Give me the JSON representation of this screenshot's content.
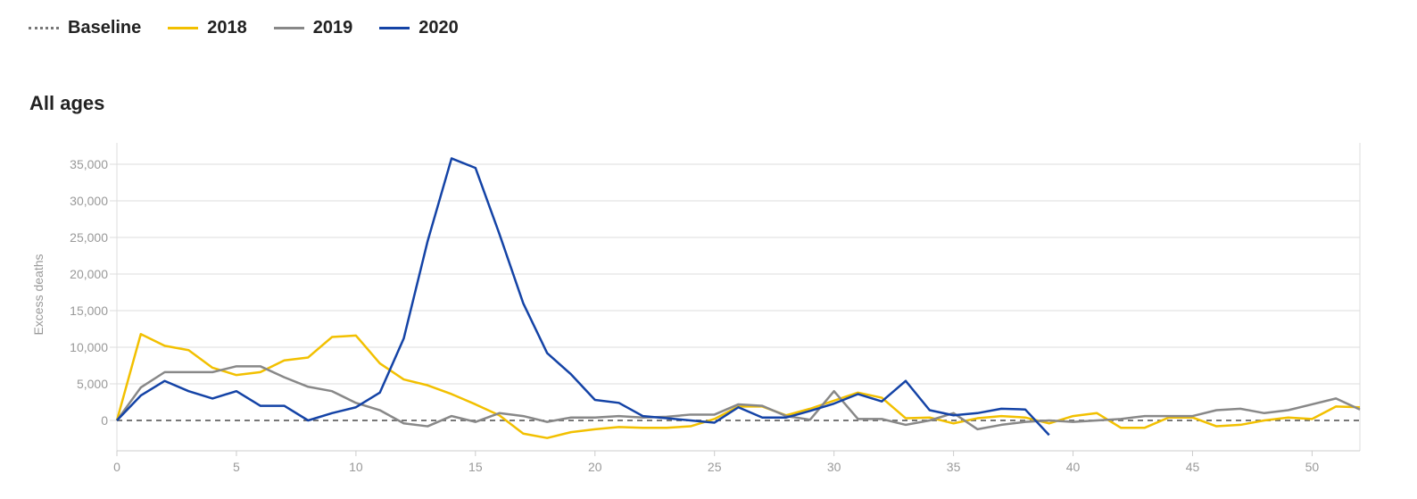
{
  "legend": [
    {
      "label": "Baseline",
      "color": "#777777",
      "style": "dotted"
    },
    {
      "label": "2018",
      "color": "#f2c000",
      "style": "solid"
    },
    {
      "label": "2019",
      "color": "#888888",
      "style": "solid"
    },
    {
      "label": "2020",
      "color": "#1443a6",
      "style": "solid"
    }
  ],
  "chart_data": {
    "type": "line",
    "title": "All ages",
    "xlabel": "",
    "ylabel": "Excess deaths",
    "xlim": [
      0,
      52
    ],
    "ylim": [
      -4000,
      38000
    ],
    "grid": true,
    "legend_position": "top-left",
    "x_ticks": [
      0,
      5,
      10,
      15,
      20,
      25,
      30,
      35,
      40,
      45,
      50
    ],
    "y_ticks": [
      0,
      5000,
      10000,
      15000,
      20000,
      25000,
      30000,
      35000
    ],
    "y_tick_labels": [
      "0",
      "5,000",
      "10,000",
      "15,000",
      "20,000",
      "25,000",
      "30,000",
      "35,000"
    ],
    "x_tick_labels": [
      "0",
      "5",
      "10",
      "15",
      "20",
      "25",
      "30",
      "35",
      "40",
      "45",
      "50"
    ],
    "baseline": 0,
    "series": [
      {
        "name": "2018",
        "color": "#f2c000",
        "values": [
          0,
          11800,
          10200,
          9600,
          7200,
          6200,
          6600,
          8200,
          8600,
          11400,
          11600,
          7800,
          5600,
          4800,
          3600,
          2200,
          700,
          -1800,
          -2400,
          -1600,
          -1200,
          -900,
          -1000,
          -1000,
          -800,
          200,
          1900,
          1900,
          700,
          1600,
          2700,
          3800,
          3100,
          300,
          400,
          -400,
          300,
          600,
          400,
          -400,
          600,
          1000,
          -1000,
          -1000,
          400,
          400,
          -800,
          -600,
          0,
          400,
          200,
          1900,
          1800
        ]
      },
      {
        "name": "2019",
        "color": "#888888",
        "values": [
          0,
          4500,
          6600,
          6600,
          6600,
          7400,
          7400,
          5900,
          4600,
          4000,
          2400,
          1400,
          -400,
          -800,
          600,
          -200,
          1000,
          600,
          -200,
          400,
          400,
          600,
          400,
          500,
          800,
          800,
          2200,
          2000,
          600,
          100,
          4000,
          200,
          200,
          -600,
          0,
          1000,
          -1200,
          -600,
          -200,
          0,
          -200,
          0,
          200,
          600,
          600,
          600,
          1400,
          1600,
          1000,
          1400,
          2200,
          3000,
          1500
        ]
      },
      {
        "name": "2020",
        "color": "#1443a6",
        "values": [
          0,
          3400,
          5400,
          4000,
          3000,
          4000,
          2000,
          2000,
          0,
          1000,
          1800,
          3800,
          11200,
          24500,
          35800,
          34500,
          25500,
          16000,
          9200,
          6300,
          2800,
          2400,
          600,
          300,
          0,
          -300,
          1800,
          400,
          400,
          1300,
          2300,
          3600,
          2600,
          5400,
          1400,
          700,
          1000,
          1600,
          1500,
          -2000
        ]
      }
    ]
  }
}
